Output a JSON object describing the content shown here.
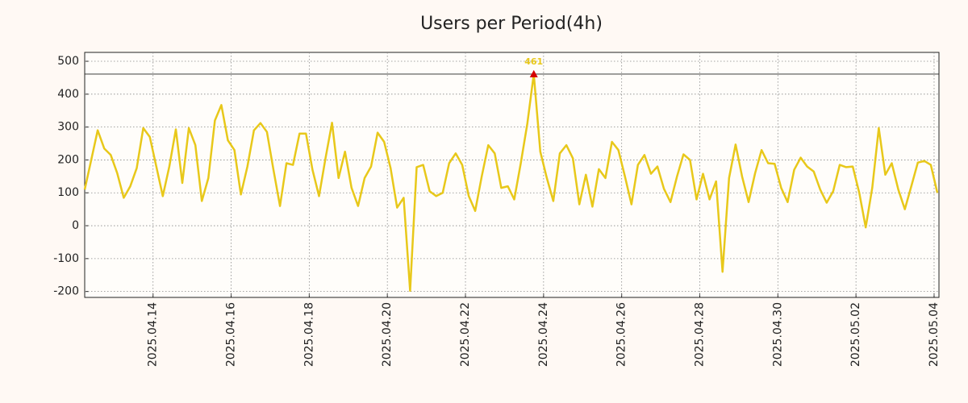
{
  "chart_data": {
    "type": "line",
    "title": "Users per Period(4h)",
    "x": [
      "2025.04.12 06:00",
      "2025.04.12 10:00",
      "2025.04.12 14:00",
      "2025.04.12 18:00",
      "2025.04.12 22:00",
      "2025.04.13 02:00",
      "2025.04.13 06:00",
      "2025.04.13 10:00",
      "2025.04.13 14:00",
      "2025.04.13 18:00",
      "2025.04.13 22:00",
      "2025.04.14 02:00",
      "2025.04.14 06:00",
      "2025.04.14 10:00",
      "2025.04.14 14:00",
      "2025.04.14 18:00",
      "2025.04.14 22:00",
      "2025.04.15 02:00",
      "2025.04.15 06:00",
      "2025.04.15 10:00",
      "2025.04.15 14:00",
      "2025.04.15 18:00",
      "2025.04.15 22:00",
      "2025.04.16 02:00",
      "2025.04.16 06:00",
      "2025.04.16 10:00",
      "2025.04.16 14:00",
      "2025.04.16 18:00",
      "2025.04.16 22:00",
      "2025.04.17 02:00",
      "2025.04.17 06:00",
      "2025.04.17 10:00",
      "2025.04.17 14:00",
      "2025.04.17 18:00",
      "2025.04.17 22:00",
      "2025.04.18 02:00",
      "2025.04.18 06:00",
      "2025.04.18 10:00",
      "2025.04.18 14:00",
      "2025.04.18 18:00",
      "2025.04.18 22:00",
      "2025.04.19 02:00",
      "2025.04.19 06:00",
      "2025.04.19 10:00",
      "2025.04.19 14:00",
      "2025.04.19 18:00",
      "2025.04.19 22:00",
      "2025.04.20 02:00",
      "2025.04.20 06:00",
      "2025.04.20 10:00",
      "2025.04.20 14:00",
      "2025.04.20 18:00",
      "2025.04.20 22:00",
      "2025.04.21 02:00",
      "2025.04.21 06:00",
      "2025.04.21 10:00",
      "2025.04.21 14:00",
      "2025.04.21 18:00",
      "2025.04.21 22:00",
      "2025.04.22 02:00",
      "2025.04.22 06:00",
      "2025.04.22 10:00",
      "2025.04.22 14:00",
      "2025.04.22 18:00",
      "2025.04.22 22:00",
      "2025.04.23 02:00",
      "2025.04.23 06:00",
      "2025.04.23 10:00",
      "2025.04.23 14:00",
      "2025.04.23 18:00",
      "2025.04.23 22:00",
      "2025.04.24 02:00",
      "2025.04.24 06:00",
      "2025.04.24 10:00",
      "2025.04.24 14:00",
      "2025.04.24 18:00",
      "2025.04.24 22:00",
      "2025.04.25 02:00",
      "2025.04.25 06:00",
      "2025.04.25 10:00",
      "2025.04.25 14:00",
      "2025.04.25 18:00",
      "2025.04.25 22:00",
      "2025.04.26 02:00",
      "2025.04.26 06:00",
      "2025.04.26 10:00",
      "2025.04.26 14:00",
      "2025.04.26 18:00",
      "2025.04.26 22:00",
      "2025.04.27 02:00",
      "2025.04.27 06:00",
      "2025.04.27 10:00",
      "2025.04.27 14:00",
      "2025.04.27 18:00",
      "2025.04.27 22:00",
      "2025.04.28 02:00",
      "2025.04.28 06:00",
      "2025.04.28 10:00",
      "2025.04.28 14:00",
      "2025.04.28 18:00",
      "2025.04.28 22:00",
      "2025.04.29 02:00",
      "2025.04.29 06:00",
      "2025.04.29 10:00",
      "2025.04.29 14:00",
      "2025.04.29 18:00",
      "2025.04.29 22:00",
      "2025.04.30 02:00",
      "2025.04.30 06:00",
      "2025.04.30 10:00",
      "2025.04.30 14:00",
      "2025.04.30 18:00",
      "2025.04.30 22:00",
      "2025.05.01 02:00",
      "2025.05.01 06:00",
      "2025.05.01 10:00",
      "2025.05.01 14:00",
      "2025.05.01 18:00",
      "2025.05.01 22:00",
      "2025.05.02 02:00",
      "2025.05.02 06:00",
      "2025.05.02 10:00",
      "2025.05.02 14:00",
      "2025.05.02 18:00",
      "2025.05.02 22:00",
      "2025.05.03 02:00",
      "2025.05.03 06:00",
      "2025.05.03 10:00",
      "2025.05.03 14:00",
      "2025.05.03 18:00",
      "2025.05.03 22:00",
      "2025.05.04 02:00"
    ],
    "series": [
      {
        "color": "#e8c81a",
        "values": [
          110,
          200,
          290,
          235,
          215,
          160,
          85,
          120,
          175,
          297,
          270,
          180,
          90,
          180,
          293,
          130,
          297,
          245,
          75,
          145,
          320,
          367,
          260,
          230,
          95,
          180,
          290,
          312,
          285,
          170,
          60,
          190,
          185,
          280,
          280,
          170,
          90,
          205,
          313,
          145,
          225,
          115,
          60,
          145,
          180,
          283,
          255,
          175,
          55,
          85,
          -198,
          178,
          185,
          105,
          90,
          100,
          190,
          220,
          185,
          90,
          45,
          150,
          245,
          220,
          115,
          120,
          80,
          190,
          310,
          461,
          225,
          145,
          75,
          220,
          245,
          205,
          65,
          155,
          58,
          172,
          145,
          255,
          230,
          150,
          65,
          185,
          215,
          158,
          180,
          112,
          72,
          150,
          217,
          200,
          80,
          158,
          80,
          135,
          -140,
          145,
          247,
          150,
          72,
          160,
          230,
          190,
          188,
          115,
          72,
          170,
          207,
          180,
          165,
          110,
          70,
          105,
          185,
          178,
          180,
          100,
          -5,
          115,
          297,
          155,
          190,
          110,
          50,
          120,
          192,
          197,
          185,
          100
        ]
      }
    ],
    "peak_label": "461",
    "peak_color": "#d40000",
    "xlim": [
      "2025.04.12 06:00",
      "2025.05.04 02:00"
    ],
    "xticks": [
      {
        "value": "2025.04.14 00:00",
        "label": "2025.04.14"
      },
      {
        "value": "2025.04.16 00:00",
        "label": "2025.04.16"
      },
      {
        "value": "2025.04.18 00:00",
        "label": "2025.04.18"
      },
      {
        "value": "2025.04.20 00:00",
        "label": "2025.04.20"
      },
      {
        "value": "2025.04.22 00:00",
        "label": "2025.04.22"
      },
      {
        "value": "2025.04.24 00:00",
        "label": "2025.04.24"
      },
      {
        "value": "2025.04.26 00:00",
        "label": "2025.04.26"
      },
      {
        "value": "2025.04.28 00:00",
        "label": "2025.04.28"
      },
      {
        "value": "2025.04.30 00:00",
        "label": "2025.04.30"
      },
      {
        "value": "2025.05.02 00:00",
        "label": "2025.05.02"
      },
      {
        "value": "2025.05.04 00:00",
        "label": "2025.05.04"
      }
    ],
    "ylim": [
      -218,
      527
    ],
    "yticks": [
      -200,
      -100,
      0,
      100,
      200,
      300,
      400,
      500
    ],
    "grid": true
  }
}
